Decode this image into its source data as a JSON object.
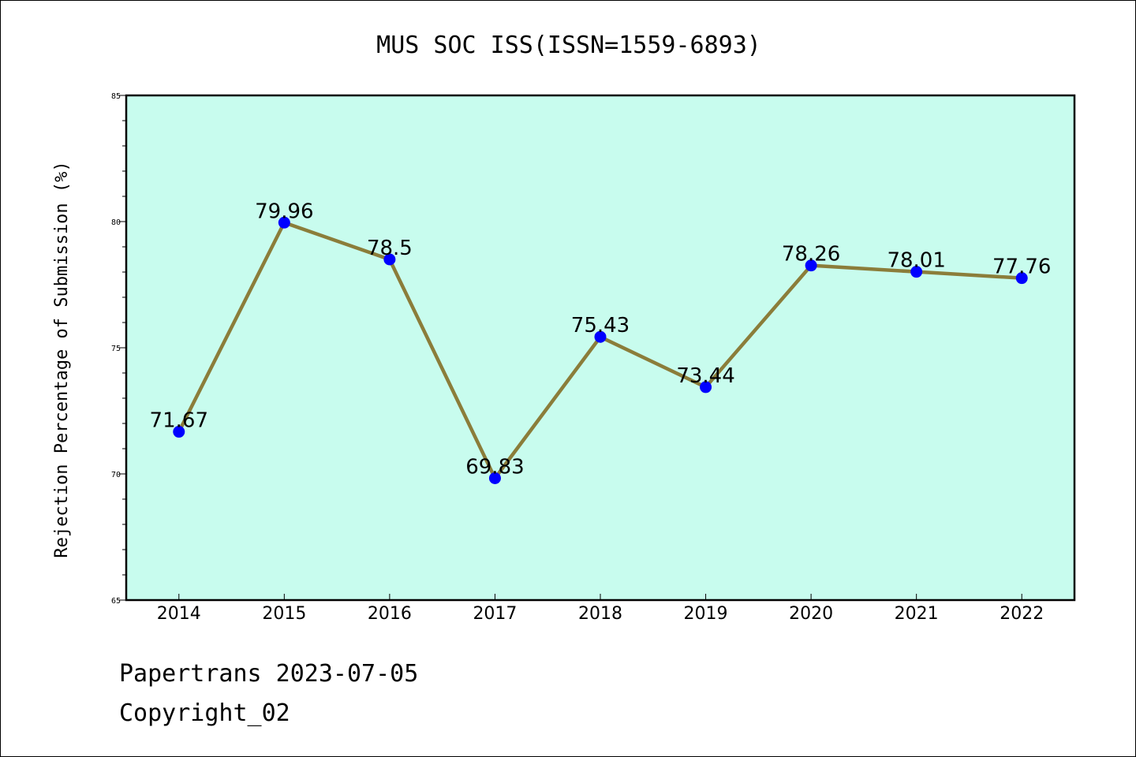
{
  "chart_data": {
    "type": "line",
    "title": "MUS SOC ISS(ISSN=1559-6893)",
    "ylabel": "Rejection Percentage of Submission (%)",
    "xlabel": "",
    "categories": [
      "2014",
      "2015",
      "2016",
      "2017",
      "2018",
      "2019",
      "2020",
      "2021",
      "2022"
    ],
    "values": [
      71.67,
      79.96,
      78.5,
      69.83,
      75.43,
      73.44,
      78.26,
      78.01,
      77.76
    ],
    "data_labels": [
      "71.67",
      "79.96",
      "78.5",
      "69.83",
      "75.43",
      "73.44",
      "78.26",
      "78.01",
      "77.76"
    ],
    "ylim": [
      65,
      85
    ],
    "yticks": [
      65,
      70,
      75,
      80,
      85
    ],
    "grid": false,
    "colors": {
      "background": "#c8fcee",
      "line": "#8b7d3a",
      "marker": "#0000ff"
    }
  },
  "footer": {
    "line1": "Papertrans 2023-07-05",
    "line2": "Copyright_02"
  }
}
